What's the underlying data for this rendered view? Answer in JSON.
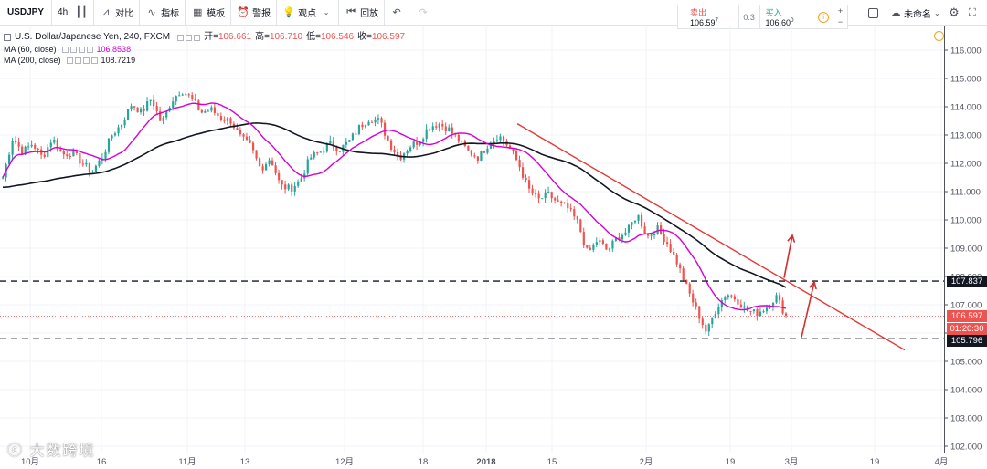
{
  "toolbar": {
    "symbol": "USDJPY",
    "interval": "4h",
    "compare": "对比",
    "indicators": "指标",
    "templates": "模板",
    "alert": "警报",
    "ideas": "观点",
    "replay": "回放",
    "unnamed": "未命名"
  },
  "trade": {
    "sell_label": "卖出",
    "sell_price": "106.59",
    "sell_sup": "7",
    "spread": "0.3",
    "buy_label": "买入",
    "buy_price": "106.60",
    "buy_sup": "0"
  },
  "legend": {
    "title": "U.S. Dollar/Japanese Yen, 240, FXCM",
    "open_label": "开=",
    "open": "106.661",
    "high_label": "高=",
    "high": "106.710",
    "low_label": "低=",
    "low": "106.546",
    "close_label": "收=",
    "close": "106.597",
    "ma60_label": "MA (60, close)",
    "ma60_value": "106.8538",
    "ma200_label": "MA (200, close)",
    "ma200_value": "108.7219"
  },
  "price_tags": {
    "resistance": "107.837",
    "last": "106.597",
    "countdown": "01:20:30",
    "support": "105.796"
  },
  "watermark": "大数跨境",
  "colors": {
    "up": "#26a69a",
    "down": "#ef5350",
    "ma60": "#d500d5",
    "ma200": "#131722",
    "trendline": "#e53935"
  },
  "chart_data": {
    "type": "candlestick",
    "ylim": [
      101.8,
      116.4
    ],
    "y_ticks": [
      "102.000",
      "103.000",
      "104.000",
      "105.000",
      "106.000",
      "107.000",
      "108.000",
      "109.000",
      "110.000",
      "111.000",
      "112.000",
      "113.000",
      "114.000",
      "115.000",
      "116.000"
    ],
    "x_ticks": [
      "10月",
      "16",
      "11月",
      "13",
      "12月",
      "18",
      "2018",
      "15",
      "2月",
      "19",
      "3月",
      "19",
      "4月"
    ],
    "levels": [
      107.837,
      105.796
    ],
    "last_price": 106.597,
    "close_path": [
      111.5,
      112.9,
      112.4,
      112.7,
      112.2,
      112.9,
      112.3,
      112.4,
      112.0,
      111.7,
      112.2,
      113.0,
      113.4,
      114.1,
      113.8,
      114.3,
      113.4,
      114.2,
      114.6,
      114.3,
      113.8,
      113.9,
      113.6,
      113.5,
      112.9,
      112.6,
      111.8,
      112.2,
      111.2,
      111.1,
      111.4,
      112.2,
      112.4,
      112.7,
      112.5,
      112.8,
      113.3,
      113.6,
      113.5,
      112.7,
      112.2,
      112.6,
      112.8,
      113.3,
      113.4,
      113.2,
      112.8,
      112.4,
      112.2,
      112.7,
      113.0,
      112.6,
      112.0,
      111.1,
      110.7,
      110.9,
      110.6,
      110.4,
      109.9,
      108.8,
      109.3,
      108.9,
      109.4,
      109.6,
      110.2,
      109.4,
      109.7,
      109.2,
      108.5,
      107.6,
      106.8,
      106.0,
      106.9,
      107.4,
      107.2,
      106.8,
      106.7,
      106.9,
      107.3,
      106.6
    ]
  }
}
